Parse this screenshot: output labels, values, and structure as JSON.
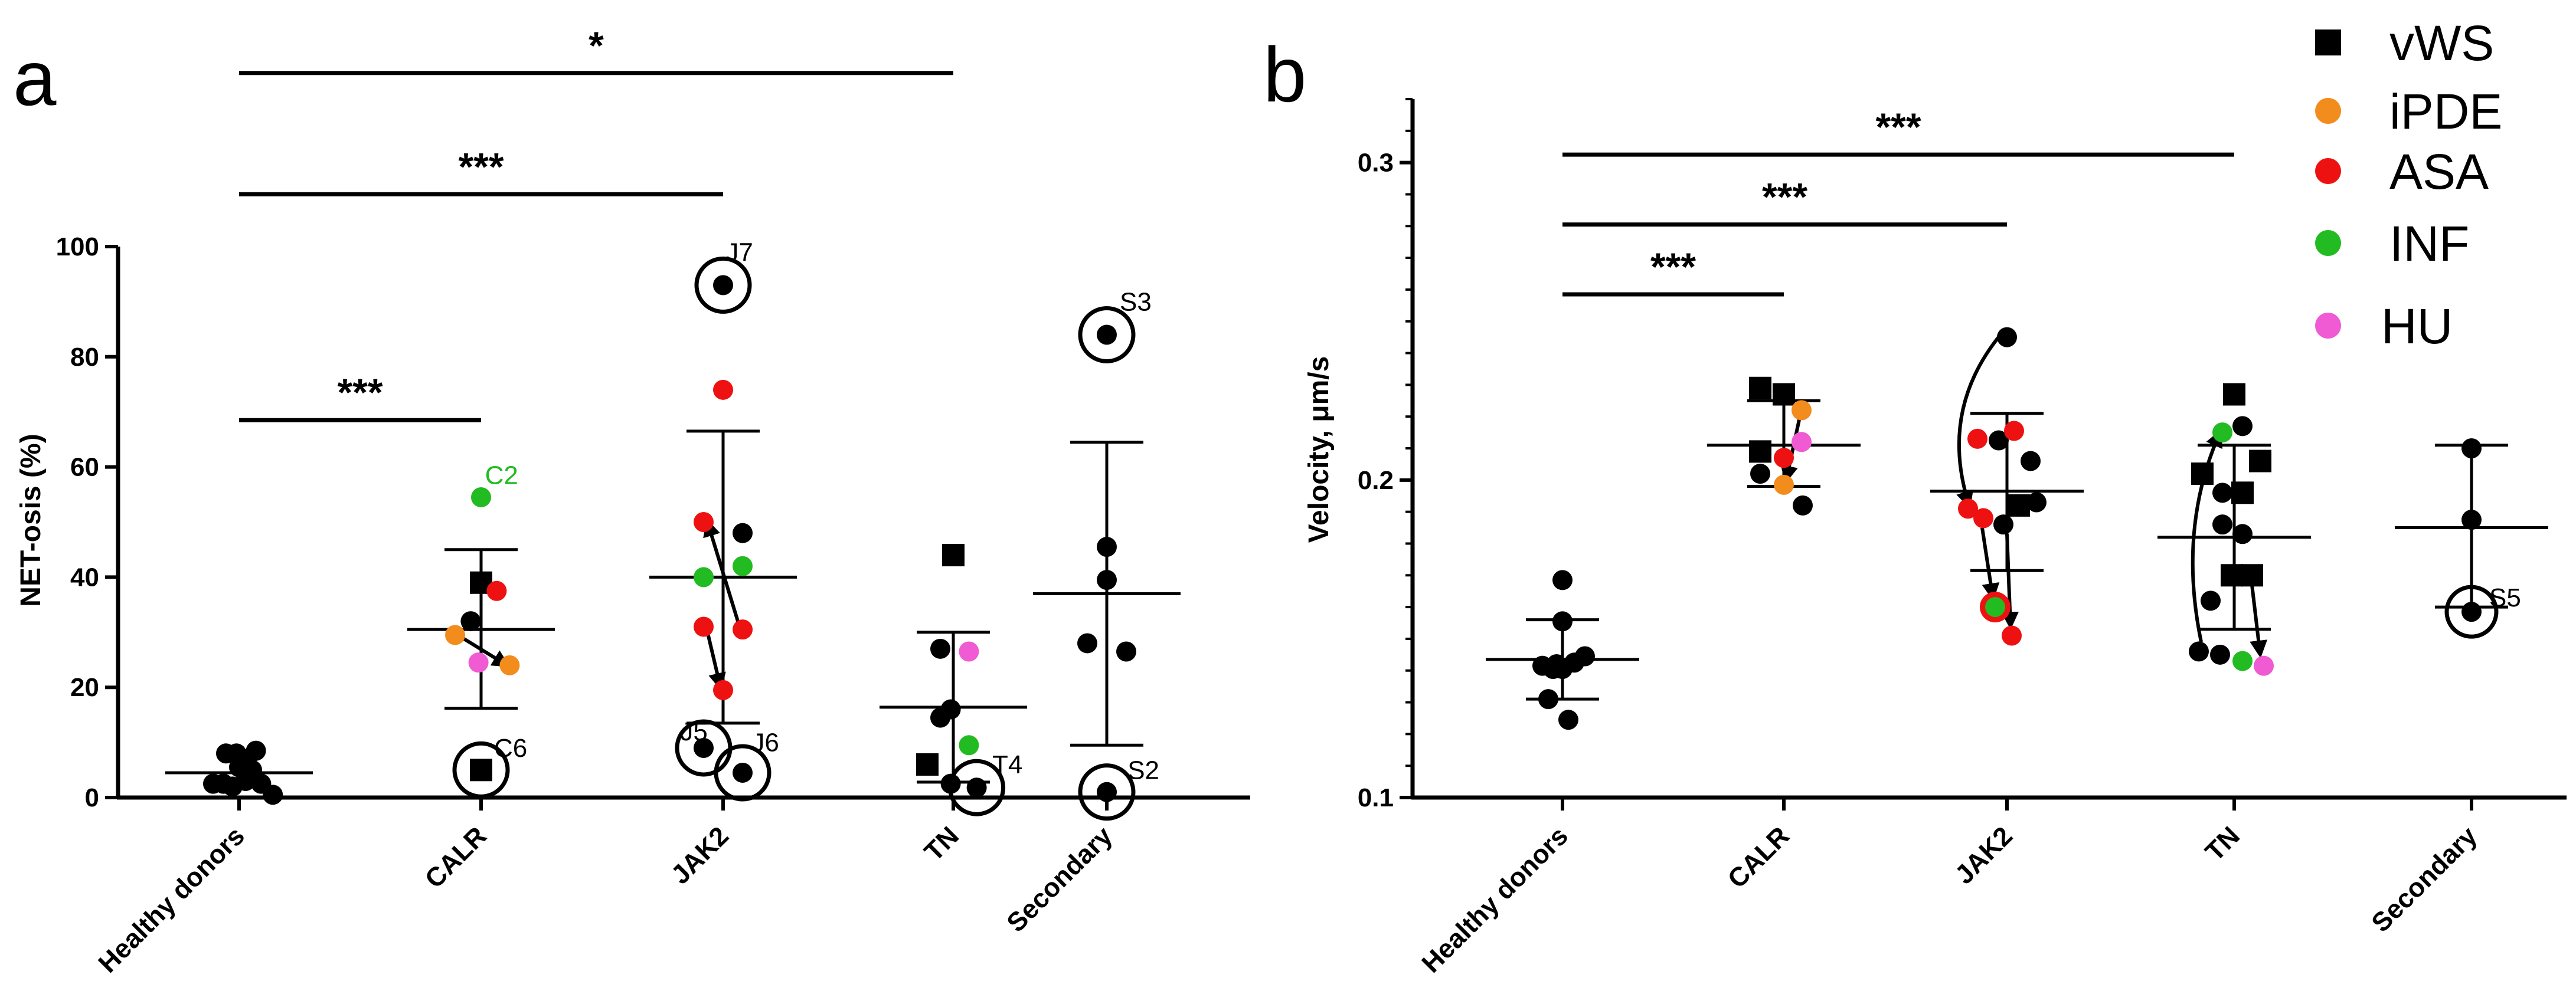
{
  "chart_data": [
    {
      "panel": "a",
      "type": "scatter",
      "ylabel": "NET-osis (%)",
      "ylim": [
        0,
        100
      ],
      "yticks": [
        0,
        20,
        40,
        60,
        80,
        100
      ],
      "categories": [
        "Healthy donors",
        "CALR",
        "JAK2",
        "TN",
        "Secondary"
      ],
      "summary": [
        {
          "category": "Healthy donors",
          "mean": 4.5,
          "low": 4.5,
          "high": 4.5
        },
        {
          "category": "CALR",
          "mean": 30.5,
          "low": 16.2,
          "high": 45
        },
        {
          "category": "JAK2",
          "mean": 40,
          "low": 13.5,
          "high": 66.5
        },
        {
          "category": "TN",
          "mean": 16.4,
          "low": 2.8,
          "high": 30
        },
        {
          "category": "Secondary",
          "mean": 37,
          "low": 9.5,
          "high": 64.5
        }
      ],
      "points": [
        {
          "cat": 0,
          "dx": -0.2,
          "y": 2.5,
          "group": "none"
        },
        {
          "cat": 0,
          "dx": -0.12,
          "y": 2.5,
          "group": "none"
        },
        {
          "cat": 0,
          "dx": -0.05,
          "y": 2,
          "group": "none"
        },
        {
          "cat": 0,
          "dx": 0.05,
          "y": 3,
          "group": "none"
        },
        {
          "cat": 0,
          "dx": -0.1,
          "y": 8,
          "group": "none"
        },
        {
          "cat": 0,
          "dx": -0.02,
          "y": 8,
          "group": "none"
        },
        {
          "cat": 0,
          "dx": 0.06,
          "y": 7,
          "group": "none"
        },
        {
          "cat": 0,
          "dx": 0.13,
          "y": 8.5,
          "group": "none"
        },
        {
          "cat": 0,
          "dx": 0.0,
          "y": 5.5,
          "group": "none"
        },
        {
          "cat": 0,
          "dx": 0.1,
          "y": 5,
          "group": "none"
        },
        {
          "cat": 0,
          "dx": 0.17,
          "y": 2.5,
          "group": "none"
        },
        {
          "cat": 0,
          "dx": 0.26,
          "y": 0.5,
          "group": "none"
        },
        {
          "cat": 1,
          "dx": -0.08,
          "y": 32,
          "group": "none"
        },
        {
          "cat": 1,
          "dx": 0.0,
          "y": 39,
          "group": "vWS"
        },
        {
          "cat": 1,
          "dx": 0.12,
          "y": 37.5,
          "group": "ASA"
        },
        {
          "cat": 1,
          "dx": -0.2,
          "y": 29.5,
          "group": "iPDE"
        },
        {
          "cat": 1,
          "dx": 0.22,
          "y": 24,
          "group": "iPDE"
        },
        {
          "cat": 1,
          "dx": -0.02,
          "y": 24.5,
          "group": "HU"
        },
        {
          "cat": 1,
          "dx": 0.0,
          "y": 54.5,
          "group": "INF"
        },
        {
          "cat": 1,
          "dx": 0.0,
          "y": 5,
          "group": "vWS",
          "circled": true
        },
        {
          "cat": 2,
          "dx": 0.0,
          "y": 93,
          "group": "none",
          "circled": true
        },
        {
          "cat": 2,
          "dx": 0.0,
          "y": 74,
          "group": "ASA"
        },
        {
          "cat": 2,
          "dx": -0.15,
          "y": 50,
          "group": "ASA"
        },
        {
          "cat": 2,
          "dx": 0.15,
          "y": 48,
          "group": "none"
        },
        {
          "cat": 2,
          "dx": -0.15,
          "y": 40,
          "group": "INF"
        },
        {
          "cat": 2,
          "dx": 0.15,
          "y": 42,
          "group": "INF"
        },
        {
          "cat": 2,
          "dx": -0.15,
          "y": 31,
          "group": "ASA"
        },
        {
          "cat": 2,
          "dx": 0.15,
          "y": 30.5,
          "group": "ASA"
        },
        {
          "cat": 2,
          "dx": 0.0,
          "y": 19.5,
          "group": "ASA"
        },
        {
          "cat": 2,
          "dx": -0.15,
          "y": 9,
          "group": "none",
          "circled": true
        },
        {
          "cat": 2,
          "dx": 0.15,
          "y": 4.5,
          "group": "none",
          "circled": true
        },
        {
          "cat": 3,
          "dx": 0.0,
          "y": 44,
          "group": "vWS"
        },
        {
          "cat": 3,
          "dx": -0.1,
          "y": 27,
          "group": "none"
        },
        {
          "cat": 3,
          "dx": 0.12,
          "y": 26.5,
          "group": "HU"
        },
        {
          "cat": 3,
          "dx": -0.1,
          "y": 14.5,
          "group": "none"
        },
        {
          "cat": 3,
          "dx": -0.02,
          "y": 16,
          "group": "none"
        },
        {
          "cat": 3,
          "dx": 0.12,
          "y": 9.5,
          "group": "INF"
        },
        {
          "cat": 3,
          "dx": -0.2,
          "y": 6,
          "group": "vWS"
        },
        {
          "cat": 3,
          "dx": -0.02,
          "y": 2.5,
          "group": "none"
        },
        {
          "cat": 3,
          "dx": 0.18,
          "y": 1.8,
          "group": "none",
          "circled": true
        },
        {
          "cat": 4,
          "dx": 0.0,
          "y": 84,
          "group": "none",
          "circled": true
        },
        {
          "cat": 4,
          "dx": 0.0,
          "y": 45.5,
          "group": "none"
        },
        {
          "cat": 4,
          "dx": 0.0,
          "y": 39.5,
          "group": "none"
        },
        {
          "cat": 4,
          "dx": -0.15,
          "y": 28,
          "group": "none"
        },
        {
          "cat": 4,
          "dx": 0.15,
          "y": 26.5,
          "group": "none"
        },
        {
          "cat": 4,
          "dx": 0.0,
          "y": 1,
          "group": "none",
          "circled": true
        }
      ],
      "arrows": [
        {
          "from": {
            "cat": 1,
            "dx": -0.18,
            "y": 29.5
          },
          "to": {
            "cat": 1,
            "dx": 0.2,
            "y": 24
          }
        },
        {
          "from": {
            "cat": 2,
            "dx": 0.12,
            "y": 31.5
          },
          "to": {
            "cat": 2,
            "dx": -0.12,
            "y": 50
          }
        },
        {
          "from": {
            "cat": 2,
            "dx": -0.12,
            "y": 30
          },
          "to": {
            "cat": 2,
            "dx": -0.02,
            "y": 20
          }
        }
      ],
      "annotations": [
        {
          "text": "C2",
          "cat": 1,
          "dx": 0.03,
          "y": 58.5,
          "color": "#22bb22"
        },
        {
          "text": "C6",
          "cat": 1,
          "dx": 0.1,
          "y": 9
        },
        {
          "text": "J7",
          "cat": 2,
          "dx": 0.02,
          "y": 99
        },
        {
          "text": "J5",
          "cat": 2,
          "dx": -0.33,
          "y": 12
        },
        {
          "text": "J6",
          "cat": 2,
          "dx": 0.22,
          "y": 10
        },
        {
          "text": "T4",
          "cat": 3,
          "dx": 0.3,
          "y": 6
        },
        {
          "text": "S3",
          "cat": 4,
          "dx": 0.1,
          "y": 90
        },
        {
          "text": "S2",
          "cat": 4,
          "dx": 0.16,
          "y": 5
        }
      ],
      "significance": [
        {
          "from": 0,
          "to": 1,
          "label": "***",
          "y": 68.5
        },
        {
          "from": 0,
          "to": 2,
          "label": "***",
          "y": 109.5
        },
        {
          "from": 0,
          "to": 3,
          "label": "*",
          "y": 131.5
        }
      ]
    },
    {
      "panel": "b",
      "type": "scatter",
      "ylabel": "Velocity, μm/s",
      "ylim": [
        0.1,
        0.32
      ],
      "yticks": [
        0.1,
        0.2,
        0.3
      ],
      "categories": [
        "Healthy donors",
        "CALR",
        "JAK2",
        "TN",
        "Secondary"
      ],
      "summary": [
        {
          "category": "Healthy donors",
          "mean": 0.1435,
          "low": 0.131,
          "high": 0.156
        },
        {
          "category": "CALR",
          "mean": 0.211,
          "low": 0.198,
          "high": 0.225
        },
        {
          "category": "JAK2",
          "mean": 0.1965,
          "low": 0.1715,
          "high": 0.221
        },
        {
          "category": "TN",
          "mean": 0.182,
          "low": 0.153,
          "high": 0.211
        },
        {
          "category": "Secondary",
          "mean": 0.185,
          "low": 0.16,
          "high": 0.211
        }
      ],
      "points": [
        {
          "cat": 0,
          "dx": 0.0,
          "y": 0.1685,
          "group": "none"
        },
        {
          "cat": 0,
          "dx": 0.0,
          "y": 0.1555,
          "group": "none"
        },
        {
          "cat": 0,
          "dx": -0.17,
          "y": 0.1415,
          "group": "none"
        },
        {
          "cat": 0,
          "dx": -0.08,
          "y": 0.1405,
          "group": "none"
        },
        {
          "cat": 0,
          "dx": 0.0,
          "y": 0.1405,
          "group": "none"
        },
        {
          "cat": 0,
          "dx": 0.1,
          "y": 0.1425,
          "group": "none"
        },
        {
          "cat": 0,
          "dx": 0.19,
          "y": 0.1445,
          "group": "none"
        },
        {
          "cat": 0,
          "dx": -0.12,
          "y": 0.131,
          "group": "none"
        },
        {
          "cat": 0,
          "dx": 0.05,
          "y": 0.1245,
          "group": "none"
        },
        {
          "cat": 0,
          "dx": -0.05,
          "y": 0.142,
          "group": "none"
        },
        {
          "cat": 1,
          "dx": -0.2,
          "y": 0.229,
          "group": "vWS"
        },
        {
          "cat": 1,
          "dx": 0.0,
          "y": 0.227,
          "group": "vWS"
        },
        {
          "cat": 1,
          "dx": 0.15,
          "y": 0.222,
          "group": "iPDE"
        },
        {
          "cat": 1,
          "dx": -0.2,
          "y": 0.209,
          "group": "vWS"
        },
        {
          "cat": 1,
          "dx": 0.0,
          "y": 0.207,
          "group": "ASA"
        },
        {
          "cat": 1,
          "dx": 0.15,
          "y": 0.212,
          "group": "HU"
        },
        {
          "cat": 1,
          "dx": -0.2,
          "y": 0.202,
          "group": "none"
        },
        {
          "cat": 1,
          "dx": 0.0,
          "y": 0.1985,
          "group": "iPDE"
        },
        {
          "cat": 1,
          "dx": 0.16,
          "y": 0.192,
          "group": "none"
        },
        {
          "cat": 2,
          "dx": 0.0,
          "y": 0.245,
          "group": "none"
        },
        {
          "cat": 2,
          "dx": -0.25,
          "y": 0.213,
          "group": "ASA"
        },
        {
          "cat": 2,
          "dx": -0.07,
          "y": 0.2125,
          "group": "none"
        },
        {
          "cat": 2,
          "dx": 0.06,
          "y": 0.2155,
          "group": "ASA"
        },
        {
          "cat": 2,
          "dx": 0.2,
          "y": 0.206,
          "group": "none"
        },
        {
          "cat": 2,
          "dx": -0.33,
          "y": 0.191,
          "group": "ASA"
        },
        {
          "cat": 2,
          "dx": -0.2,
          "y": 0.188,
          "group": "ASA"
        },
        {
          "cat": 2,
          "dx": -0.03,
          "y": 0.186,
          "group": "none"
        },
        {
          "cat": 2,
          "dx": 0.1,
          "y": 0.192,
          "group": "vWS"
        },
        {
          "cat": 2,
          "dx": 0.25,
          "y": 0.193,
          "group": "none"
        },
        {
          "cat": 2,
          "dx": -0.1,
          "y": 0.16,
          "group": "INF",
          "ring": "ASA"
        },
        {
          "cat": 2,
          "dx": 0.04,
          "y": 0.151,
          "group": "ASA"
        },
        {
          "cat": 3,
          "dx": 0.0,
          "y": 0.227,
          "group": "vWS"
        },
        {
          "cat": 3,
          "dx": -0.1,
          "y": 0.215,
          "group": "INF"
        },
        {
          "cat": 3,
          "dx": 0.07,
          "y": 0.217,
          "group": "none"
        },
        {
          "cat": 3,
          "dx": 0.22,
          "y": 0.206,
          "group": "vWS"
        },
        {
          "cat": 3,
          "dx": -0.27,
          "y": 0.202,
          "group": "vWS"
        },
        {
          "cat": 3,
          "dx": -0.1,
          "y": 0.196,
          "group": "none"
        },
        {
          "cat": 3,
          "dx": 0.07,
          "y": 0.196,
          "group": "vWS"
        },
        {
          "cat": 3,
          "dx": -0.1,
          "y": 0.186,
          "group": "none"
        },
        {
          "cat": 3,
          "dx": 0.07,
          "y": 0.183,
          "group": "none"
        },
        {
          "cat": 3,
          "dx": -0.2,
          "y": 0.162,
          "group": "none"
        },
        {
          "cat": 3,
          "dx": -0.02,
          "y": 0.17,
          "group": "vWS"
        },
        {
          "cat": 3,
          "dx": 0.15,
          "y": 0.17,
          "group": "vWS"
        },
        {
          "cat": 3,
          "dx": -0.3,
          "y": 0.146,
          "group": "none"
        },
        {
          "cat": 3,
          "dx": -0.12,
          "y": 0.145,
          "group": "none"
        },
        {
          "cat": 3,
          "dx": 0.07,
          "y": 0.143,
          "group": "INF"
        },
        {
          "cat": 3,
          "dx": 0.25,
          "y": 0.1415,
          "group": "HU"
        },
        {
          "cat": 4,
          "dx": 0.0,
          "y": 0.21,
          "group": "none"
        },
        {
          "cat": 4,
          "dx": 0.0,
          "y": 0.1875,
          "group": "none"
        },
        {
          "cat": 4,
          "dx": 0.0,
          "y": 0.1585,
          "group": "none",
          "circled": true
        }
      ],
      "arrows": [
        {
          "from": {
            "cat": 1,
            "dx": 0.13,
            "y": 0.219
          },
          "to": {
            "cat": 1,
            "dx": 0.02,
            "y": 0.2
          }
        },
        {
          "from": {
            "cat": 2,
            "dx": -0.21,
            "y": 0.185
          },
          "to": {
            "cat": 2,
            "dx": -0.12,
            "y": 0.163
          }
        },
        {
          "from": {
            "cat": 2,
            "dx": 0.0,
            "y": 0.183
          },
          "to": {
            "cat": 2,
            "dx": 0.03,
            "y": 0.154
          }
        },
        {
          "from": {
            "cat": 3,
            "dx": 0.15,
            "y": 0.167
          },
          "to": {
            "cat": 3,
            "dx": 0.22,
            "y": 0.145
          }
        }
      ],
      "curved_arrows": [
        {
          "from": {
            "cat": 2,
            "dx": -0.05,
            "y": 0.246
          },
          "via": {
            "cat": 2,
            "dx": -0.58,
            "y": 0.222
          },
          "to": {
            "cat": 2,
            "dx": -0.32,
            "y": 0.192
          }
        },
        {
          "from": {
            "cat": 3,
            "dx": -0.28,
            "y": 0.149
          },
          "via": {
            "cat": 3,
            "dx": -0.48,
            "y": 0.185
          },
          "to": {
            "cat": 3,
            "dx": -0.12,
            "y": 0.215
          }
        }
      ],
      "annotations": [
        {
          "text": "S5",
          "cat": 4,
          "dx": 0.15,
          "y": 0.163
        }
      ],
      "significance": [
        {
          "from": 0,
          "to": 1,
          "label": "***",
          "y": 0.2585
        },
        {
          "from": 0,
          "to": 2,
          "label": "***",
          "y": 0.2805
        },
        {
          "from": 0,
          "to": 3,
          "label": "***",
          "y": 0.3025
        }
      ]
    }
  ],
  "panel_labels": [
    "a",
    "b"
  ],
  "legend": [
    {
      "label": "vWS",
      "marker": "square",
      "color": "#000000"
    },
    {
      "label": "iPDE",
      "marker": "circle",
      "color": "#f28c1c"
    },
    {
      "label": "ASA",
      "marker": "circle",
      "color": "#ee1111"
    },
    {
      "label": "INF",
      "marker": "circle",
      "color": "#22bb22"
    },
    {
      "label": "HU",
      "marker": "circle",
      "color": "#f05ad2"
    }
  ],
  "colors": {
    "none": "#000000",
    "vWS": "#000000",
    "iPDE": "#f28c1c",
    "ASA": "#ee1111",
    "INF": "#22bb22",
    "HU": "#f05ad2"
  }
}
